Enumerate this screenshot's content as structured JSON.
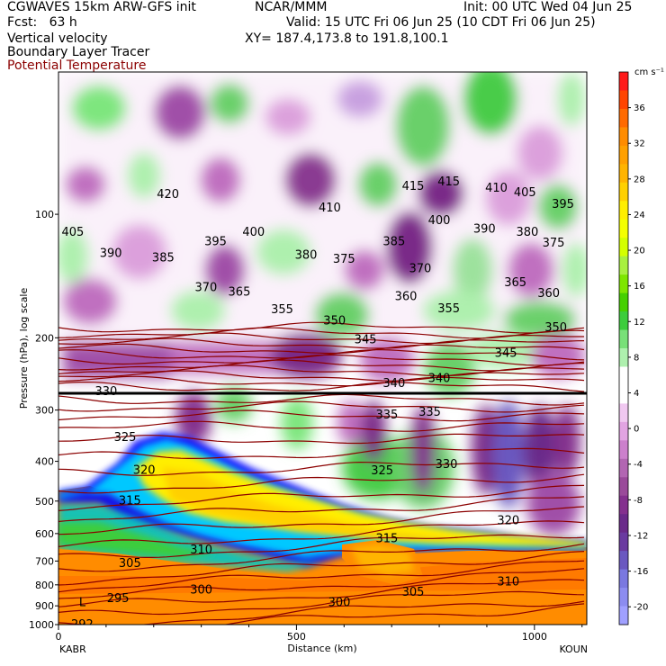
{
  "header": {
    "model": "CGWAVES 15km ARW-GFS init",
    "org": "NCAR/MMM",
    "init": "Init: 00 UTC Wed 04 Jun 25",
    "fcst": "Fcst:   63 h",
    "valid": "Valid: 15 UTC Fri 06 Jun 25 (10 CDT Fri 06 Jun 25)",
    "field1": "Vertical velocity",
    "field2": "Boundary Layer Tracer",
    "field3": "Potential Temperature",
    "xy": "XY= 187.4,173.8 to 191.8,100.1",
    "field3_color": "#8b0000"
  },
  "chart_data": {
    "type": "heatmap",
    "ylabel": "Pressure (hPa), log scale",
    "xlabel": "Distance (km)",
    "x_ticks": [
      0,
      500,
      1000
    ],
    "xlim": [
      0,
      1110
    ],
    "y_ticks": [
      100,
      200,
      300,
      400,
      500,
      600,
      700,
      800,
      900,
      1000
    ],
    "ylim": [
      1000,
      45
    ],
    "y_scale": "log",
    "left_endpoint": "KABR",
    "right_endpoint": "KOUN",
    "colorbar": {
      "unit_label": "cm s⁻¹",
      "ticks": [
        36,
        32,
        28,
        24,
        20,
        16,
        12,
        8,
        4,
        0,
        -4,
        -8,
        -12,
        -16,
        -20
      ],
      "colors": [
        "#ff1a1a",
        "#ff4500",
        "#ff6a00",
        "#ff8c00",
        "#ffa000",
        "#ffb400",
        "#ffd000",
        "#ffee00",
        "#f4ff00",
        "#d4ff00",
        "#a8f040",
        "#7ee600",
        "#46d000",
        "#3ccd3c",
        "#78e078",
        "#aef0ae",
        "#ffffff",
        "#ffffff",
        "#f0c8f0",
        "#e2a4e2",
        "#cc80cc",
        "#b266b2",
        "#9a4a9a",
        "#84308e",
        "#6a2a8a",
        "#6a3aa0",
        "#6a58c0",
        "#7a78e0",
        "#8c8cf0",
        "#a0a0ff"
      ]
    },
    "theta_labels": [
      {
        "text": "420",
        "x": 230,
        "p": 89
      },
      {
        "text": "415",
        "x": 745,
        "p": 85
      },
      {
        "text": "415",
        "x": 820,
        "p": 83
      },
      {
        "text": "410",
        "x": 920,
        "p": 86
      },
      {
        "text": "405",
        "x": 980,
        "p": 88
      },
      {
        "text": "395",
        "x": 1060,
        "p": 94
      },
      {
        "text": "410",
        "x": 570,
        "p": 96
      },
      {
        "text": "405",
        "x": 30,
        "p": 110
      },
      {
        "text": "400",
        "x": 410,
        "p": 110
      },
      {
        "text": "400",
        "x": 800,
        "p": 103
      },
      {
        "text": "395",
        "x": 330,
        "p": 116
      },
      {
        "text": "390",
        "x": 110,
        "p": 124
      },
      {
        "text": "385",
        "x": 220,
        "p": 127
      },
      {
        "text": "380",
        "x": 520,
        "p": 125
      },
      {
        "text": "375",
        "x": 600,
        "p": 128
      },
      {
        "text": "385",
        "x": 705,
        "p": 116
      },
      {
        "text": "390",
        "x": 895,
        "p": 108
      },
      {
        "text": "380",
        "x": 985,
        "p": 110
      },
      {
        "text": "375",
        "x": 1040,
        "p": 117
      },
      {
        "text": "370",
        "x": 310,
        "p": 150
      },
      {
        "text": "365",
        "x": 380,
        "p": 154
      },
      {
        "text": "370",
        "x": 760,
        "p": 135
      },
      {
        "text": "365",
        "x": 960,
        "p": 146
      },
      {
        "text": "360",
        "x": 1030,
        "p": 155
      },
      {
        "text": "360",
        "x": 730,
        "p": 158
      },
      {
        "text": "355",
        "x": 470,
        "p": 170
      },
      {
        "text": "355",
        "x": 820,
        "p": 169
      },
      {
        "text": "350",
        "x": 580,
        "p": 181
      },
      {
        "text": "350",
        "x": 1045,
        "p": 188
      },
      {
        "text": "345",
        "x": 645,
        "p": 201
      },
      {
        "text": "345",
        "x": 940,
        "p": 217
      },
      {
        "text": "340",
        "x": 705,
        "p": 257
      },
      {
        "text": "340",
        "x": 800,
        "p": 250
      },
      {
        "text": "335",
        "x": 690,
        "p": 307
      },
      {
        "text": "335",
        "x": 780,
        "p": 302
      },
      {
        "text": "330",
        "x": 100,
        "p": 269
      },
      {
        "text": "330",
        "x": 815,
        "p": 405
      },
      {
        "text": "325",
        "x": 140,
        "p": 348
      },
      {
        "text": "325",
        "x": 680,
        "p": 419
      },
      {
        "text": "320",
        "x": 180,
        "p": 418
      },
      {
        "text": "320",
        "x": 945,
        "p": 555
      },
      {
        "text": "315",
        "x": 150,
        "p": 497
      },
      {
        "text": "315",
        "x": 690,
        "p": 615
      },
      {
        "text": "310",
        "x": 300,
        "p": 655
      },
      {
        "text": "310",
        "x": 945,
        "p": 783
      },
      {
        "text": "305",
        "x": 150,
        "p": 705
      },
      {
        "text": "305",
        "x": 745,
        "p": 830
      },
      {
        "text": "300",
        "x": 300,
        "p": 820
      },
      {
        "text": "300",
        "x": 590,
        "p": 880
      },
      {
        "text": "295",
        "x": 125,
        "p": 860
      },
      {
        "text": "292",
        "x": 50,
        "p": 995
      }
    ],
    "annotations": [
      {
        "text": "L",
        "x": 50,
        "p": 880
      }
    ]
  }
}
